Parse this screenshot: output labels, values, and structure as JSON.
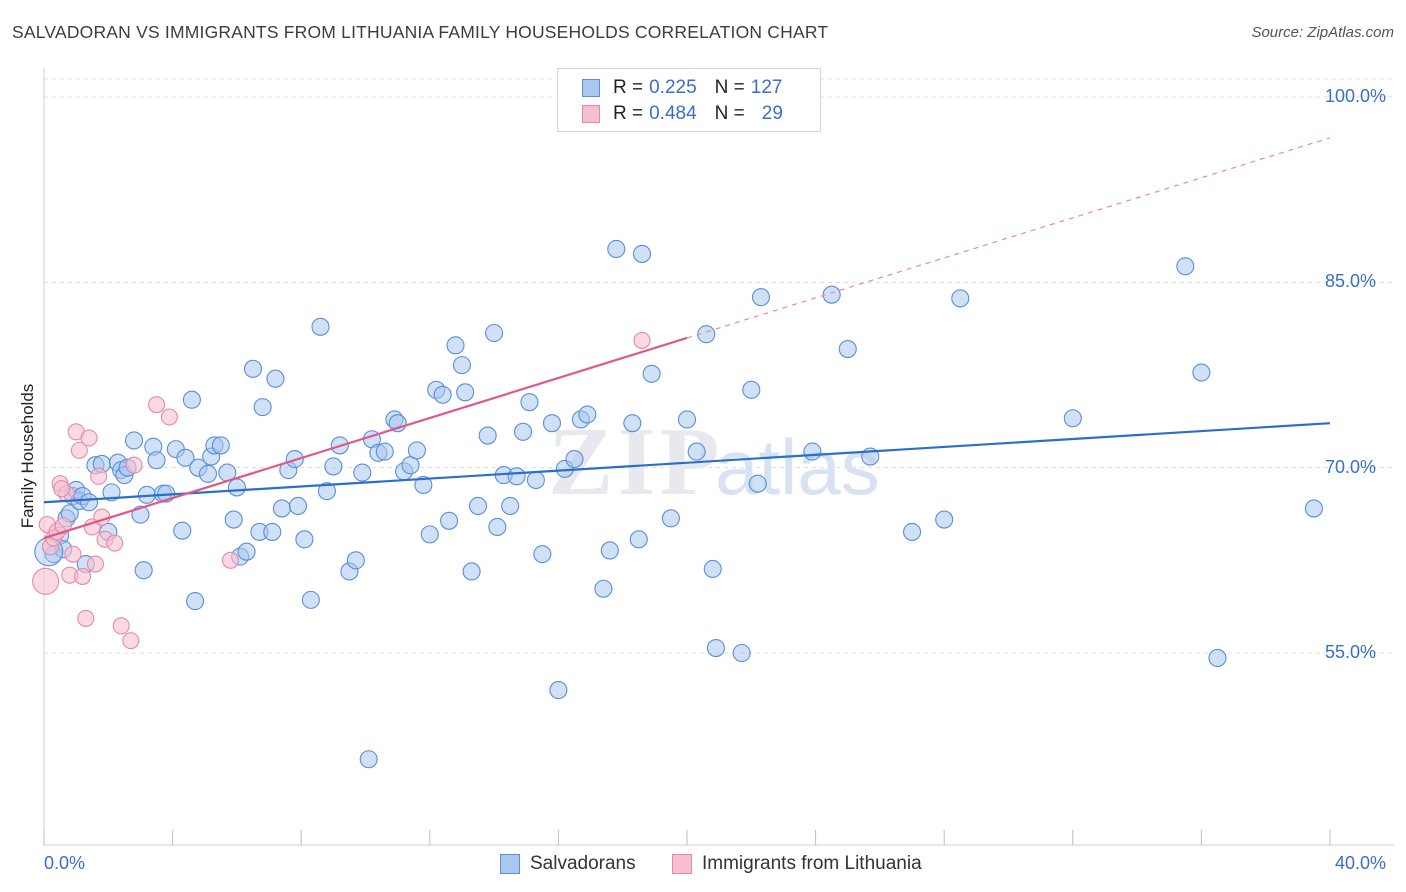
{
  "title": "SALVADORAN VS IMMIGRANTS FROM LITHUANIA FAMILY HOUSEHOLDS CORRELATION CHART",
  "source": "Source: ZipAtlas.com",
  "watermark": {
    "zip": "ZIP",
    "atlas": "atlas"
  },
  "legend_top": [
    {
      "r_label": "R =",
      "r_value": "0.225",
      "n_label": "N =",
      "n_value": "127"
    },
    {
      "r_label": "R =",
      "r_value": "0.484",
      "n_label": "N =",
      "n_value": "29"
    }
  ],
  "legend_bottom": [
    "Salvadorans",
    "Immigrants from Lithuania"
  ],
  "y_axis_label": "Family Households",
  "x_tick_labels": {
    "left": "0.0%",
    "right": "40.0%"
  },
  "y_tick_labels": [
    "100.0%",
    "85.0%",
    "70.0%",
    "55.0%"
  ],
  "colors": {
    "blue_fill": "#a9c7f0",
    "blue_stroke": "#5a8fd6",
    "blue_line": "#2a6fcc",
    "pink_fill": "#f6bfd0",
    "pink_stroke": "#e58aa8",
    "pink_line": "#e0588a",
    "tick_text": "#3a6fc8",
    "grid": "#dcdcdc"
  },
  "chart_data": {
    "type": "scatter",
    "title": "SALVADORAN VS IMMIGRANTS FROM LITHUANIA FAMILY HOUSEHOLDS CORRELATION CHART",
    "xlabel": "",
    "ylabel": "Family Households",
    "xlim": [
      0,
      40
    ],
    "ylim": [
      40,
      102
    ],
    "x_unit": "%",
    "y_unit": "%",
    "y_ticks": [
      55,
      70,
      85,
      100
    ],
    "x_ticks_labeled": [
      0,
      40
    ],
    "grid": "horizontal dashed",
    "legend": "top-center",
    "series": [
      {
        "name": "Salvadorans",
        "color": "#a9c7f0",
        "R": 0.225,
        "N": 127,
        "trend": {
          "x": [
            0,
            40
          ],
          "y": [
            67.2,
            73.6
          ]
        },
        "points": [
          [
            0.3,
            63.0
          ],
          [
            0.5,
            64.5
          ],
          [
            0.6,
            63.4
          ],
          [
            0.7,
            65.9
          ],
          [
            0.8,
            66.3
          ],
          [
            0.9,
            67.7
          ],
          [
            1.0,
            68.2
          ],
          [
            1.1,
            67.3
          ],
          [
            1.2,
            67.7
          ],
          [
            1.3,
            62.2
          ],
          [
            1.4,
            67.2
          ],
          [
            1.6,
            70.2
          ],
          [
            1.8,
            70.3
          ],
          [
            2.0,
            64.8
          ],
          [
            2.1,
            68.0
          ],
          [
            2.3,
            70.4
          ],
          [
            2.4,
            69.8
          ],
          [
            2.5,
            69.4
          ],
          [
            2.6,
            70.0
          ],
          [
            2.8,
            72.2
          ],
          [
            3.0,
            66.2
          ],
          [
            3.1,
            61.7
          ],
          [
            3.2,
            67.8
          ],
          [
            3.4,
            71.7
          ],
          [
            3.5,
            70.6
          ],
          [
            3.7,
            67.9
          ],
          [
            3.8,
            67.9
          ],
          [
            4.1,
            71.5
          ],
          [
            4.3,
            64.9
          ],
          [
            4.4,
            70.8
          ],
          [
            4.6,
            75.5
          ],
          [
            4.7,
            59.2
          ],
          [
            4.8,
            70.0
          ],
          [
            5.1,
            69.5
          ],
          [
            5.2,
            70.9
          ],
          [
            5.3,
            71.8
          ],
          [
            5.5,
            71.8
          ],
          [
            5.7,
            69.6
          ],
          [
            5.9,
            65.8
          ],
          [
            6.0,
            68.4
          ],
          [
            6.1,
            62.8
          ],
          [
            6.3,
            63.2
          ],
          [
            6.5,
            78.0
          ],
          [
            6.7,
            64.8
          ],
          [
            6.8,
            74.9
          ],
          [
            7.1,
            64.8
          ],
          [
            7.2,
            77.2
          ],
          [
            7.4,
            66.7
          ],
          [
            7.6,
            69.8
          ],
          [
            7.8,
            70.7
          ],
          [
            7.9,
            66.9
          ],
          [
            8.1,
            64.2
          ],
          [
            8.3,
            59.3
          ],
          [
            8.6,
            81.4
          ],
          [
            8.8,
            68.1
          ],
          [
            9.0,
            70.1
          ],
          [
            9.2,
            71.8
          ],
          [
            9.5,
            61.6
          ],
          [
            9.7,
            62.5
          ],
          [
            9.9,
            69.6
          ],
          [
            10.1,
            46.4
          ],
          [
            10.2,
            72.3
          ],
          [
            10.4,
            71.2
          ],
          [
            10.6,
            71.3
          ],
          [
            10.9,
            73.9
          ],
          [
            11.0,
            73.6
          ],
          [
            11.2,
            69.7
          ],
          [
            11.4,
            70.2
          ],
          [
            11.6,
            71.4
          ],
          [
            11.8,
            68.6
          ],
          [
            12.0,
            64.6
          ],
          [
            12.2,
            76.3
          ],
          [
            12.4,
            75.9
          ],
          [
            12.6,
            65.7
          ],
          [
            12.8,
            79.9
          ],
          [
            13.0,
            78.3
          ],
          [
            13.1,
            76.1
          ],
          [
            13.3,
            61.6
          ],
          [
            13.5,
            66.9
          ],
          [
            13.8,
            72.6
          ],
          [
            14.0,
            80.9
          ],
          [
            14.1,
            65.2
          ],
          [
            14.3,
            69.4
          ],
          [
            14.5,
            66.9
          ],
          [
            14.7,
            69.3
          ],
          [
            14.9,
            72.9
          ],
          [
            15.1,
            75.3
          ],
          [
            15.3,
            69.0
          ],
          [
            15.5,
            63.0
          ],
          [
            15.8,
            73.6
          ],
          [
            16.0,
            52.0
          ],
          [
            16.2,
            69.9
          ],
          [
            16.5,
            70.7
          ],
          [
            16.7,
            73.9
          ],
          [
            16.9,
            74.3
          ],
          [
            17.4,
            60.2
          ],
          [
            17.6,
            63.3
          ],
          [
            17.8,
            87.7
          ],
          [
            18.3,
            73.6
          ],
          [
            18.5,
            64.2
          ],
          [
            18.6,
            87.3
          ],
          [
            18.9,
            77.6
          ],
          [
            19.5,
            65.9
          ],
          [
            20.0,
            73.9
          ],
          [
            20.3,
            71.3
          ],
          [
            20.6,
            80.8
          ],
          [
            20.8,
            61.8
          ],
          [
            20.9,
            55.4
          ],
          [
            21.7,
            55.0
          ],
          [
            22.0,
            76.3
          ],
          [
            22.2,
            68.7
          ],
          [
            22.3,
            83.8
          ],
          [
            23.9,
            71.3
          ],
          [
            24.5,
            84.0
          ],
          [
            25.0,
            79.6
          ],
          [
            25.7,
            70.9
          ],
          [
            27.0,
            64.8
          ],
          [
            28.0,
            65.8
          ],
          [
            28.5,
            83.7
          ],
          [
            32.0,
            74.0
          ],
          [
            35.5,
            86.3
          ],
          [
            36.0,
            77.7
          ],
          [
            36.5,
            54.6
          ],
          [
            39.5,
            66.7
          ]
        ]
      },
      {
        "name": "Immigrants from Lithuania",
        "color": "#f6bfd0",
        "R": 0.484,
        "N": 29,
        "trend": {
          "x": [
            0,
            20
          ],
          "y": [
            64.3,
            80.5
          ]
        },
        "trend_extension": {
          "x": [
            20,
            40
          ],
          "y": [
            80.5,
            96.7
          ]
        },
        "points": [
          [
            0.05,
            60.8
          ],
          [
            0.1,
            65.4
          ],
          [
            0.2,
            63.6
          ],
          [
            0.3,
            64.3
          ],
          [
            0.4,
            64.8
          ],
          [
            0.5,
            68.7
          ],
          [
            0.6,
            65.3
          ],
          [
            0.7,
            67.9
          ],
          [
            0.8,
            61.3
          ],
          [
            0.9,
            63.0
          ],
          [
            1.0,
            72.9
          ],
          [
            1.1,
            71.4
          ],
          [
            1.2,
            61.2
          ],
          [
            1.3,
            57.8
          ],
          [
            1.4,
            72.4
          ],
          [
            1.5,
            65.2
          ],
          [
            1.6,
            62.2
          ],
          [
            1.7,
            69.3
          ],
          [
            1.8,
            66.0
          ],
          [
            1.9,
            64.2
          ],
          [
            2.2,
            63.9
          ],
          [
            2.4,
            57.2
          ],
          [
            2.7,
            56.0
          ],
          [
            2.8,
            70.2
          ],
          [
            3.5,
            75.1
          ],
          [
            3.9,
            74.1
          ],
          [
            5.8,
            62.5
          ],
          [
            18.6,
            80.3
          ],
          [
            0.55,
            68.3
          ]
        ]
      }
    ]
  }
}
